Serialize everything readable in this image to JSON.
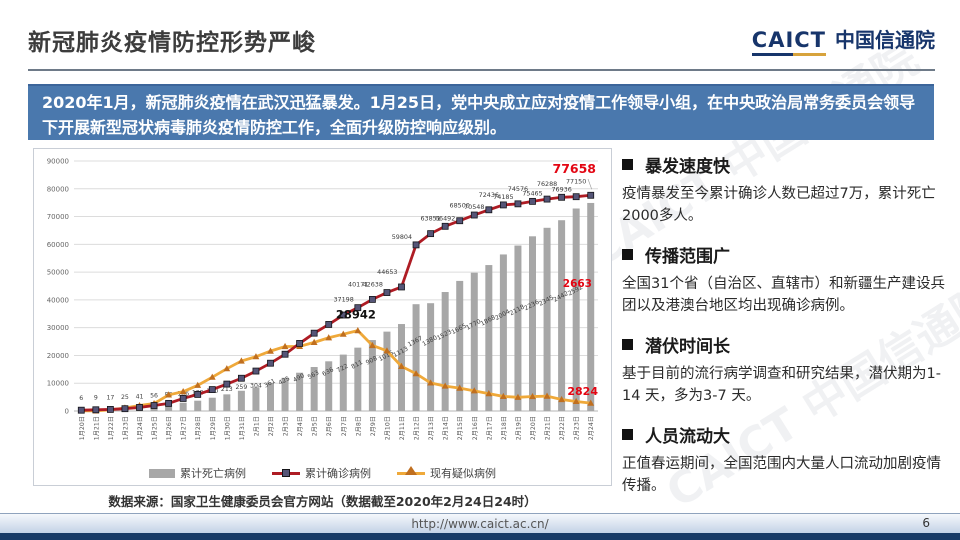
{
  "header": {
    "title": "新冠肺炎疫情防控形势严峻",
    "logo_caict": "CAICT",
    "logo_cn": "中国信通院"
  },
  "banner": {
    "text": "2020年1月，新冠肺炎疫情在武汉迅猛暴发。1月25日，党中央成立应对疫情工作领导小组，在中央政治局常务委员会领导下开展新型冠状病毒肺炎疫情防控工作，全面升级防控响应级别。"
  },
  "chart_data": {
    "type": "bar",
    "subtype": "combo-bar-plus-two-lines",
    "categories": [
      "1月20日",
      "1月21日",
      "1月22日",
      "1月23日",
      "1月24日",
      "1月25日",
      "1月26日",
      "1月27日",
      "1月28日",
      "1月29日",
      "1月30日",
      "1月31日",
      "2月1日",
      "2月2日",
      "2月3日",
      "2月4日",
      "2月5日",
      "2月6日",
      "2月7日",
      "2月8日",
      "2月9日",
      "2月10日",
      "2月11日",
      "2月12日",
      "2月13日",
      "2月14日",
      "2月15日",
      "2月16日",
      "2月17日",
      "2月18日",
      "2月19日",
      "2月20日",
      "2月21日",
      "2月22日",
      "2月23日",
      "2月24日"
    ],
    "series": [
      {
        "name": "累计死亡病例",
        "type": "bar",
        "color": "#a7a7a7",
        "values": [
          6,
          9,
          17,
          25,
          41,
          56,
          80,
          106,
          132,
          170,
          213,
          259,
          304,
          361,
          425,
          490,
          563,
          636,
          722,
          811,
          908,
          1016,
          1113,
          1367,
          1380,
          1523,
          1665,
          1770,
          1868,
          2004,
          2118,
          2236,
          2345,
          2442,
          2592,
          2663
        ]
      },
      {
        "name": "累计确诊病例",
        "type": "line",
        "color": "#ae1c24",
        "marker": "square-icon",
        "values": [
          291,
          440,
          571,
          830,
          1287,
          1975,
          2744,
          4515,
          5974,
          7711,
          9692,
          11791,
          14380,
          17205,
          20438,
          24324,
          28018,
          31161,
          34546,
          37198,
          40171,
          42638,
          44653,
          59804,
          63851,
          66492,
          68500,
          70548,
          72436,
          74185,
          74576,
          75465,
          76288,
          76936,
          77150,
          77658
        ]
      },
      {
        "name": "现有疑似病例",
        "type": "line",
        "color": "#efa93a",
        "marker": "triangle-icon",
        "values": [
          54,
          37,
          393,
          1072,
          1965,
          2684,
          5794,
          6973,
          9239,
          12167,
          15238,
          17988,
          19544,
          21558,
          23214,
          23260,
          24702,
          26359,
          27657,
          28942,
          23589,
          21675,
          16067,
          13435,
          10109,
          8969,
          8228,
          7264,
          6242,
          5248,
          4922,
          5206,
          5365,
          4148,
          3434,
          2824
        ]
      }
    ],
    "ylim": [
      0,
      90000
    ],
    "ytick_step": 10000,
    "grid": true,
    "legend_position": "bottom",
    "highlight_labels": {
      "confirmed_last": "77658",
      "deaths_last": "2663",
      "suspected_peak": "28942",
      "suspected_last": "2824"
    },
    "highlight_color": "#e30613",
    "source": "数据来源：国家卫生健康委员会官方网站（数据截至2020年2月24日24时）"
  },
  "bullets": [
    {
      "title": "暴发速度快",
      "body": "疫情暴发至今累计确诊人数已超过7万，累计死亡2000多人。"
    },
    {
      "title": "传播范围广",
      "body": "全国31个省（自治区、直辖市）和新疆生产建设兵团以及港澳台地区均出现确诊病例。"
    },
    {
      "title": "潜伏时间长",
      "body": "基于目前的流行病学调查和研究结果，潜伏期为1-14 天，多为3-7 天。"
    },
    {
      "title": "人员流动大",
      "body": "正值春运期间，全国范围内大量人口流动加剧疫情传播。"
    }
  ],
  "footer": {
    "url": "http://www.caict.ac.cn/",
    "page": "6"
  },
  "colors": {
    "banner_bg": "#4a78ad",
    "bar": "#a7a7a7",
    "confirmed_line": "#ae1c24",
    "suspected_line": "#efa93a",
    "highlight_red": "#e30613",
    "navy": "#17356b"
  },
  "watermark_text": "CAICT 中国信通院"
}
